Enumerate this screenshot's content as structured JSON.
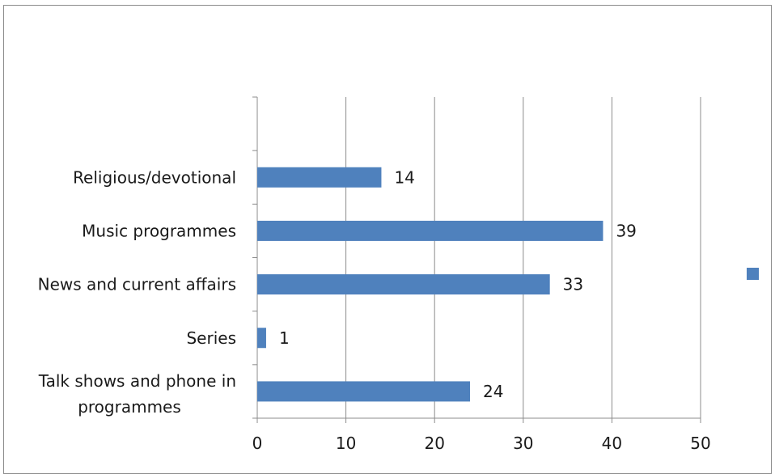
{
  "chart_data": {
    "type": "bar",
    "orientation": "horizontal",
    "categories": [
      "Talk shows and phone in programmes",
      "Series",
      "News and current affairs",
      "Music programmes",
      "Religious/devotional",
      ""
    ],
    "category_label_lines": [
      [
        "Talk shows and phone in",
        "programmes"
      ],
      [
        "Series"
      ],
      [
        "News and current affairs"
      ],
      [
        "Music programmes"
      ],
      [
        "Religious/devotional"
      ],
      []
    ],
    "series": [
      {
        "values": [
          24,
          1,
          33,
          39,
          14,
          null
        ],
        "color": "#4f81bd"
      }
    ],
    "xlim": [
      0,
      50
    ],
    "xticks": [
      0,
      10,
      20,
      30,
      40,
      50
    ],
    "grid": "vertical",
    "legend": "right",
    "title": "",
    "xlabel": "",
    "ylabel": ""
  }
}
